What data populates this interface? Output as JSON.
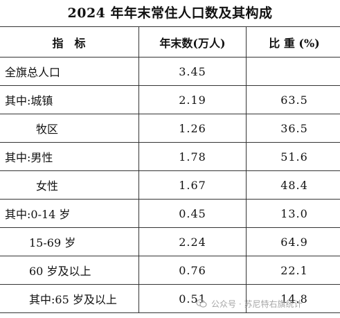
{
  "title": "2024 年年末常住人口数及其构成",
  "table": {
    "headers": [
      "指　标",
      "年末数(万人)",
      "比 重 (%)"
    ],
    "rows": [
      {
        "label": "全旗总人口",
        "value": "3.45",
        "share": "",
        "indent": 0
      },
      {
        "label": "其中:城镇",
        "value": "2.19",
        "share": "63.5",
        "indent": 0
      },
      {
        "label": "牧区",
        "value": "1.26",
        "share": "36.5",
        "indent": 1
      },
      {
        "label": "其中:男性",
        "value": "1.78",
        "share": "51.6",
        "indent": 0
      },
      {
        "label": "女性",
        "value": "1.67",
        "share": "48.4",
        "indent": 1
      },
      {
        "label": "其中:0-14 岁",
        "value": "0.45",
        "share": "13.0",
        "indent": 0
      },
      {
        "label": "15-69 岁",
        "value": "2.24",
        "share": "64.9",
        "indent": 2
      },
      {
        "label": "60 岁及以上",
        "value": "0.76",
        "share": "22.1",
        "indent": 2
      },
      {
        "label": "其中:65 岁及以上",
        "value": "0.51",
        "share": "14.8",
        "indent": 2
      }
    ]
  },
  "watermark": {
    "text": "公众号 · 苏尼特右旗统计",
    "icon": "wechat-icon"
  }
}
